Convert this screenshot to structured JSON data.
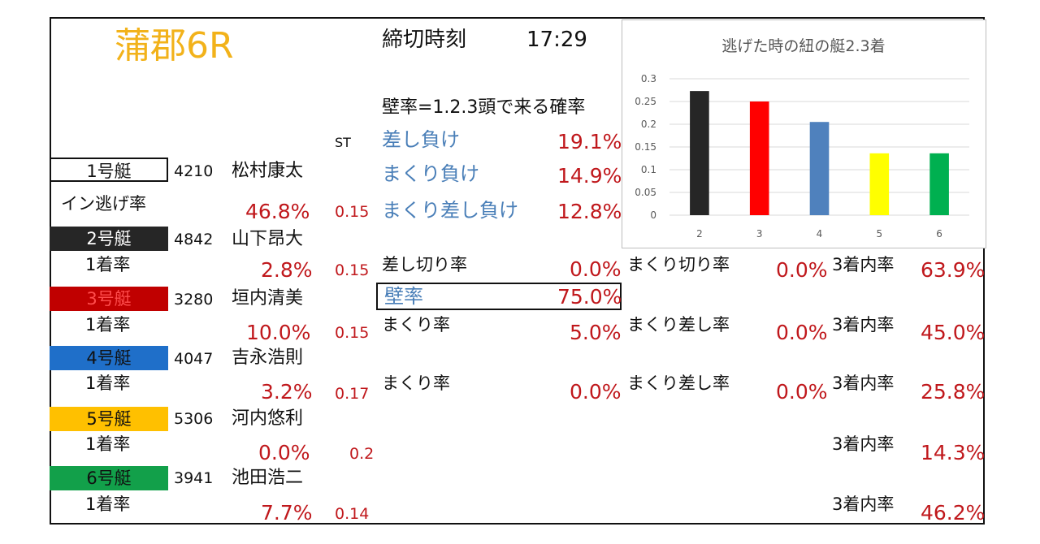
{
  "header": {
    "title": "蒲郡6R",
    "deadline_label": "締切時刻",
    "deadline_time": "17:29",
    "wall_definition": "壁率=1.2.3頭で来る確率",
    "st_label": "ST"
  },
  "first_boat_stats": {
    "sashi_make_label": "差し負け",
    "sashi_make_value": "19.1%",
    "makuri_make_label": "まくり負け",
    "makuri_make_value": "14.9%",
    "makurisashi_make_label": "まくり差し負け",
    "makurisashi_make_value": "12.8%"
  },
  "boats": [
    {
      "boat": "1号艇",
      "number": "4210",
      "name": "松村康太",
      "rate_label": "イン逃げ率",
      "rate": "46.8%",
      "st": "0.15",
      "color": "#ffffff"
    },
    {
      "boat": "2号艇",
      "number": "4842",
      "name": "山下昂大",
      "rate_label": "1着率",
      "rate": "2.8%",
      "st": "0.15",
      "color": "#262626",
      "a_label": "差し切り率",
      "a_value": "0.0%",
      "b_label": "まくり切り率",
      "b_value": "0.0%",
      "c_label": "3着内率",
      "c_value": "63.9%"
    },
    {
      "boat": "3号艇",
      "number": "3280",
      "name": "垣内清美",
      "rate_label": "1着率",
      "rate": "10.0%",
      "st": "0.15",
      "color": "#c00000",
      "a_label": "まくり率",
      "a_value": "5.0%",
      "b_label": "まくり差し率",
      "b_value": "0.0%",
      "c_label": "3着内率",
      "c_value": "45.0%"
    },
    {
      "boat": "4号艇",
      "number": "4047",
      "name": "吉永浩則",
      "rate_label": "1着率",
      "rate": "3.2%",
      "st": "0.17",
      "color": "#1f6fc9",
      "a_label": "まくり率",
      "a_value": "0.0%",
      "b_label": "まくり差し率",
      "b_value": "0.0%",
      "c_label": "3着内率",
      "c_value": "25.8%"
    },
    {
      "boat": "5号艇",
      "number": "5306",
      "name": "河内悠利",
      "rate_label": "1着率",
      "rate": "0.0%",
      "st": "0.2",
      "color": "#ffc000",
      "c_label": "3着内率",
      "c_value": "14.3%"
    },
    {
      "boat": "6号艇",
      "number": "3941",
      "name": "池田浩二",
      "rate_label": "1着率",
      "rate": "7.7%",
      "st": "0.14",
      "color": "#12a04a",
      "c_label": "3着内率",
      "c_value": "46.2%"
    }
  ],
  "wall": {
    "label": "壁率",
    "value": "75.0%"
  },
  "chart_data": {
    "type": "bar",
    "title": "逃げた時の紐の艇2.3着",
    "categories": [
      "2",
      "3",
      "4",
      "5",
      "6"
    ],
    "values": [
      0.273,
      0.25,
      0.205,
      0.136,
      0.136
    ],
    "colors": [
      "#262626",
      "#ff0000",
      "#4f81bd",
      "#ffff00",
      "#00b050"
    ],
    "ylim": [
      0,
      0.3
    ],
    "yticks": [
      "0",
      "0.05",
      "0.1",
      "0.15",
      "0.2",
      "0.25",
      "0.3"
    ],
    "grid": true,
    "xlabel": "",
    "ylabel": ""
  }
}
